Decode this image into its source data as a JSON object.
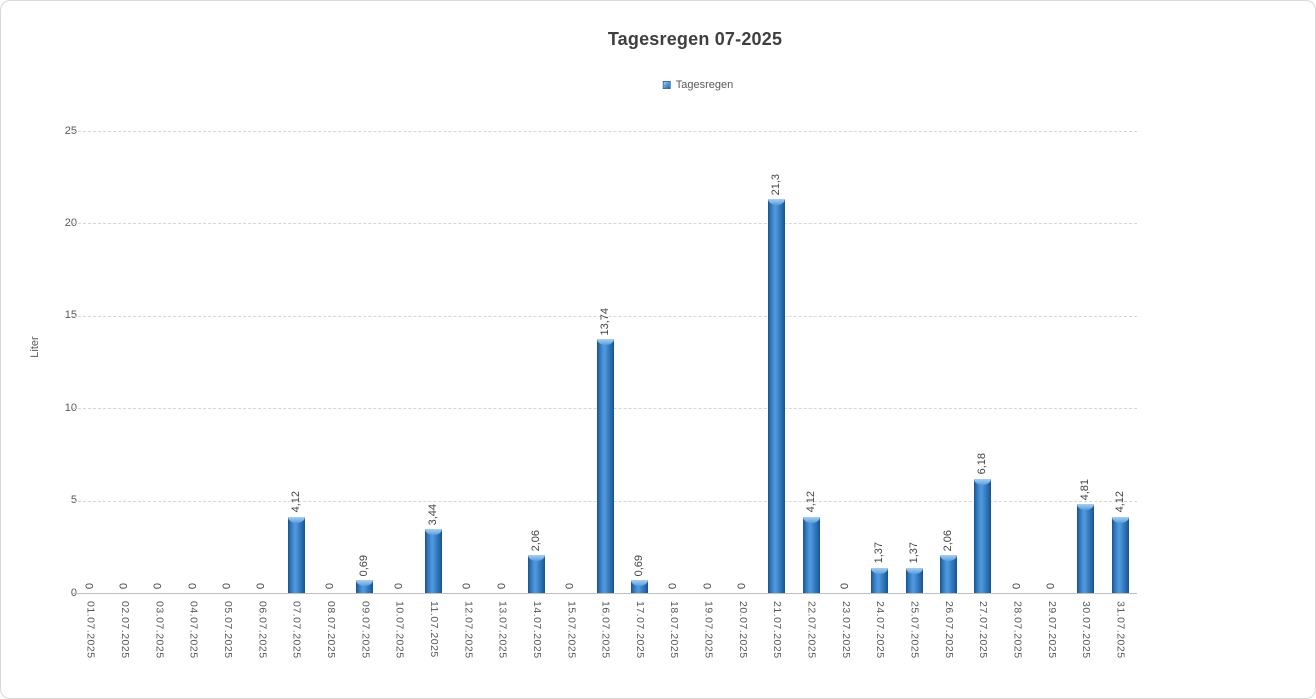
{
  "title": "Tagesregen 07-2025",
  "legend": {
    "label": "Tagesregen"
  },
  "y_axis": {
    "title": "Liter"
  },
  "colors": {
    "title_text": "#3f3f3f",
    "axis_text": "#595959",
    "data_label_text": "#454545",
    "gridline": "#d6d6d6",
    "axis_line": "#bfbfbf",
    "bar_main": "#4f97dc",
    "bar_edge": "#17528f",
    "bar_cap_highlight": "#a6d0f2",
    "frame_border": "#d9d9d9"
  },
  "chart_data": {
    "type": "bar",
    "title": "Tagesregen 07-2025",
    "xlabel": "",
    "ylabel": "Liter",
    "ylim": [
      0,
      25
    ],
    "yticks": [
      0,
      5,
      10,
      15,
      20,
      25
    ],
    "grid": "horizontal-dashed",
    "legend_position": "top-center",
    "series_name": "Tagesregen",
    "categories": [
      "01.07.2025",
      "02.07.2025",
      "03.07.2025",
      "04.07.2025",
      "05.07.2025",
      "06.07.2025",
      "07.07.2025",
      "08.07.2025",
      "09.07.2025",
      "10.07.2025",
      "11.07.2025",
      "12.07.2025",
      "13.07.2025",
      "14.07.2025",
      "15.07.2025",
      "16.07.2025",
      "17.07.2025",
      "18.07.2025",
      "19.07.2025",
      "20.07.2025",
      "21.07.2025",
      "22.07.2025",
      "23.07.2025",
      "24.07.2025",
      "25.07.2025",
      "26.07.2025",
      "27.07.2025",
      "28.07.2025",
      "29.07.2025",
      "30.07.2025",
      "31.07.2025"
    ],
    "values": [
      0,
      0,
      0,
      0,
      0,
      0,
      4.12,
      0,
      0.69,
      0,
      3.44,
      0,
      0,
      2.06,
      0,
      13.74,
      0.69,
      0,
      0,
      0,
      21.3,
      4.12,
      0,
      1.37,
      1.37,
      2.06,
      6.18,
      0,
      0,
      4.81,
      4.12
    ],
    "data_labels": [
      "0",
      "0",
      "0",
      "0",
      "0",
      "0",
      "4,12",
      "0",
      "0,69",
      "0",
      "3,44",
      "0",
      "0",
      "2,06",
      "0",
      "13,74",
      "0,69",
      "0",
      "0",
      "0",
      "21,3",
      "4,12",
      "0",
      "1,37",
      "1,37",
      "2,06",
      "6,18",
      "0",
      "0",
      "4,81",
      "4,12"
    ]
  }
}
